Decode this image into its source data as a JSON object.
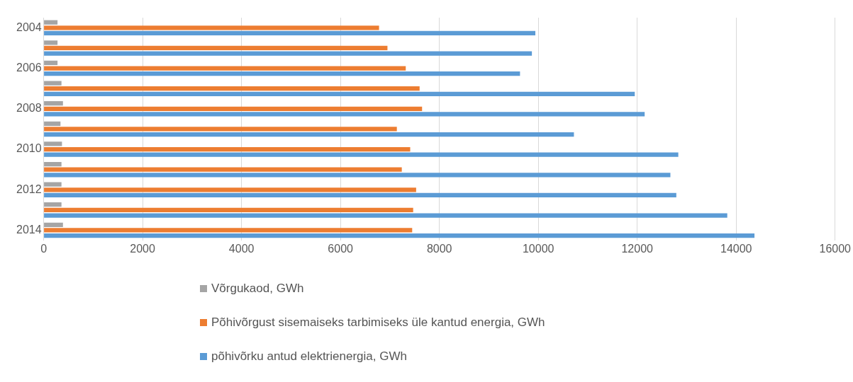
{
  "chart_data": {
    "type": "bar",
    "orientation": "horizontal",
    "categories": [
      "2004",
      null,
      "2006",
      null,
      "2008",
      null,
      "2010",
      null,
      "2012",
      null,
      "2014"
    ],
    "series": [
      {
        "name": "Võrgukaod, GWh",
        "color": "#a5a5a5",
        "values": [
          280,
          280,
          280,
          360,
          390,
          340,
          370,
          360,
          360,
          360,
          390
        ]
      },
      {
        "name": "Põhivõrgust sisemaiseks tarbimiseks üle kantud energia, GWh",
        "color": "#ed7d31",
        "values": [
          6780,
          6950,
          7320,
          7600,
          7650,
          7140,
          7410,
          7240,
          7530,
          7470,
          7450
        ]
      },
      {
        "name": "põhivõrku antud elektrienergia, GWh",
        "color": "#5b9bd5",
        "values": [
          9940,
          9870,
          9630,
          11950,
          12150,
          10720,
          12830,
          12670,
          12790,
          13820,
          14370
        ]
      }
    ],
    "xlim": [
      0,
      16000
    ],
    "xticks": [
      0,
      2000,
      4000,
      6000,
      8000,
      10000,
      12000,
      14000,
      16000
    ],
    "grid": "x",
    "legend": "bottom"
  }
}
